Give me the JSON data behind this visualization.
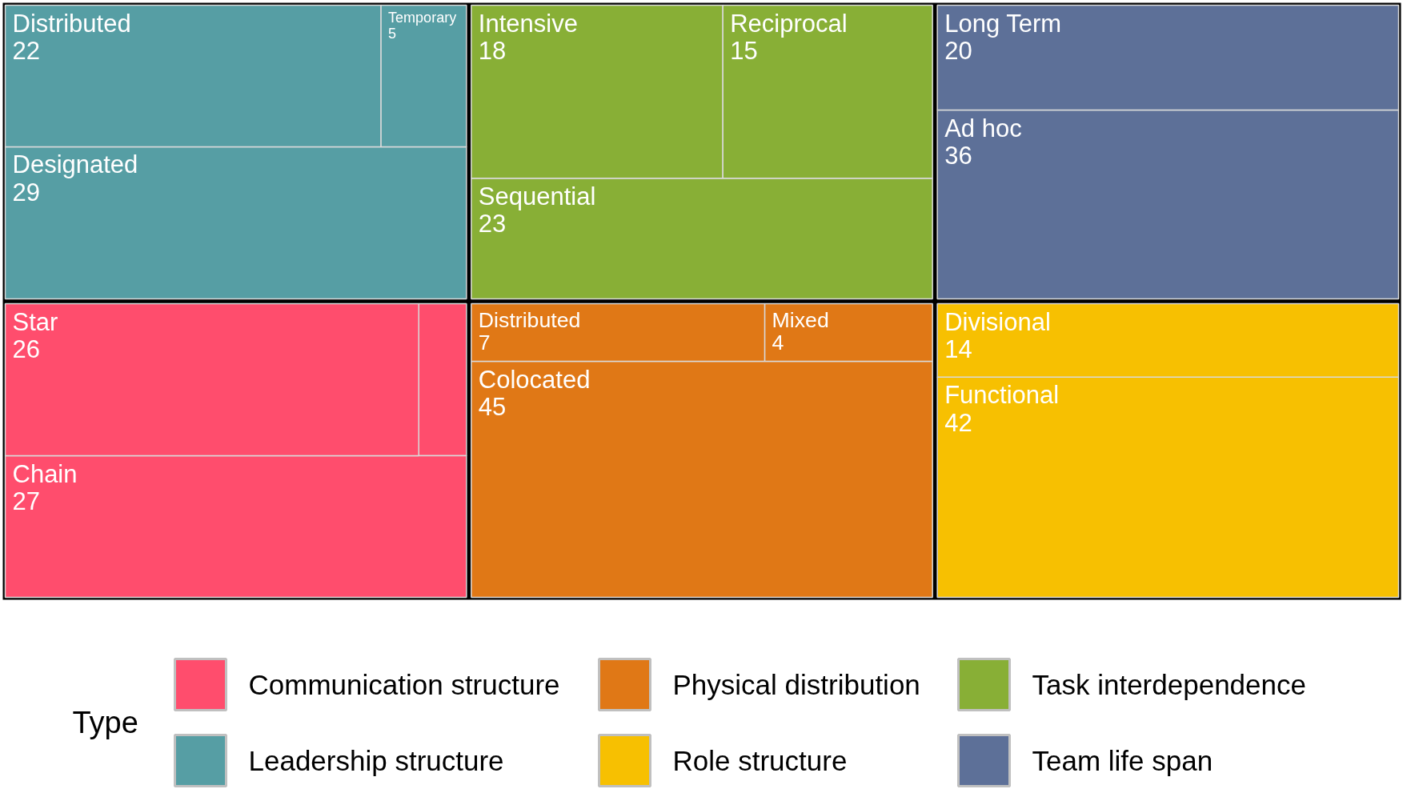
{
  "chart_data": {
    "type": "other",
    "legend_title": "Type",
    "legend": "bottom",
    "data_labels": true,
    "categories": [
      "Chain",
      "Star",
      "Designated",
      "Distributed",
      "Temporary",
      "Colocated",
      "Distributed",
      "Mixed",
      "Functional",
      "Divisional",
      "Sequential",
      "Intensive",
      "Reciprocal",
      "Ad hoc",
      "Long Term"
    ],
    "series": [
      {
        "name": "Communication structure",
        "color": "#ff4d6d",
        "values": [
          27,
          26,
          null,
          null,
          null,
          null,
          null,
          null,
          null,
          null,
          null,
          null,
          null,
          null,
          null
        ]
      },
      {
        "name": "Leadership structure",
        "color": "#569ea4",
        "values": [
          null,
          null,
          29,
          22,
          5,
          null,
          null,
          null,
          null,
          null,
          null,
          null,
          null,
          null,
          null
        ]
      },
      {
        "name": "Physical distribution",
        "color": "#e07816",
        "values": [
          null,
          null,
          null,
          null,
          null,
          45,
          7,
          4,
          null,
          null,
          null,
          null,
          null,
          null,
          null
        ]
      },
      {
        "name": "Role structure",
        "color": "#f7c001",
        "values": [
          null,
          null,
          null,
          null,
          null,
          null,
          null,
          null,
          42,
          14,
          null,
          null,
          null,
          null,
          null
        ]
      },
      {
        "name": "Task interdependence",
        "color": "#88af36",
        "values": [
          null,
          null,
          null,
          null,
          null,
          null,
          null,
          null,
          null,
          null,
          23,
          18,
          15,
          null,
          null
        ]
      },
      {
        "name": "Team life span",
        "color": "#5d7098",
        "values": [
          null,
          null,
          null,
          null,
          null,
          null,
          null,
          null,
          null,
          null,
          null,
          null,
          null,
          36,
          20
        ]
      }
    ]
  }
}
